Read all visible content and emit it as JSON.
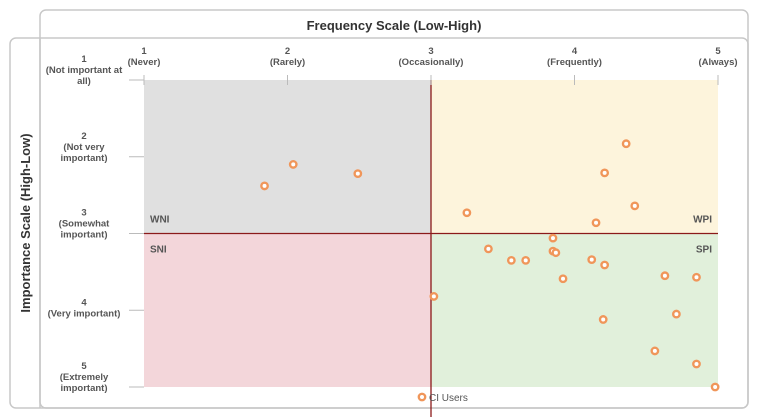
{
  "chart_data": {
    "type": "scatter",
    "xlabel": "Frequency Scale (Low-High)",
    "ylabel": "Importance Scale (High-Low)",
    "xlim": [
      1,
      5
    ],
    "ylim": [
      1,
      5
    ],
    "y_inverted": true,
    "grid": false,
    "legend_placement": "bottom",
    "x_ticks": [
      {
        "value": 1,
        "lines": [
          "1",
          "(Never)"
        ]
      },
      {
        "value": 2,
        "lines": [
          "2",
          "(Rarely)"
        ]
      },
      {
        "value": 3,
        "lines": [
          "3",
          "(Occasionally)"
        ]
      },
      {
        "value": 4,
        "lines": [
          "4",
          "(Frequently)"
        ]
      },
      {
        "value": 5,
        "lines": [
          "5",
          "(Always)"
        ]
      }
    ],
    "y_ticks": [
      {
        "value": 1,
        "lines": [
          "1",
          "(Not important at",
          "all)"
        ]
      },
      {
        "value": 2,
        "lines": [
          "2",
          "(Not very",
          "important)"
        ]
      },
      {
        "value": 3,
        "lines": [
          "3",
          "(Somewhat",
          "important)"
        ]
      },
      {
        "value": 4,
        "lines": [
          "4",
          "(Very important)"
        ]
      },
      {
        "value": 5,
        "lines": [
          "5",
          "(Extremely",
          "important)"
        ]
      }
    ],
    "quadrants": [
      {
        "label": "WNI",
        "x": [
          1,
          3
        ],
        "y": [
          1,
          3
        ],
        "color": "#e0e0e0"
      },
      {
        "label": "WPI",
        "x": [
          3,
          5
        ],
        "y": [
          1,
          3
        ],
        "color": "#fdf4dc"
      },
      {
        "label": "SNI",
        "x": [
          1,
          3
        ],
        "y": [
          3,
          5
        ],
        "color": "#f3d6da"
      },
      {
        "label": "SPI",
        "x": [
          3,
          5
        ],
        "y": [
          3,
          5
        ],
        "color": "#e1f0db"
      }
    ],
    "divider_color": "#8b1a1a",
    "series": [
      {
        "name": "CI Users",
        "color": "#f0965a",
        "points": [
          [
            2.04,
            2.1
          ],
          [
            1.84,
            2.38
          ],
          [
            2.49,
            2.22
          ],
          [
            4.36,
            1.83
          ],
          [
            4.21,
            2.21
          ],
          [
            3.25,
            2.73
          ],
          [
            4.42,
            2.64
          ],
          [
            4.15,
            2.86
          ],
          [
            3.85,
            3.06
          ],
          [
            3.4,
            3.2
          ],
          [
            3.85,
            3.23
          ],
          [
            3.87,
            3.25
          ],
          [
            3.56,
            3.35
          ],
          [
            3.66,
            3.35
          ],
          [
            4.12,
            3.34
          ],
          [
            4.21,
            3.41
          ],
          [
            3.92,
            3.59
          ],
          [
            4.63,
            3.55
          ],
          [
            4.85,
            3.57
          ],
          [
            3.02,
            3.82
          ],
          [
            4.71,
            4.05
          ],
          [
            4.2,
            4.12
          ],
          [
            4.56,
            4.53
          ],
          [
            4.85,
            4.7
          ],
          [
            4.98,
            5.0
          ]
        ]
      }
    ]
  }
}
